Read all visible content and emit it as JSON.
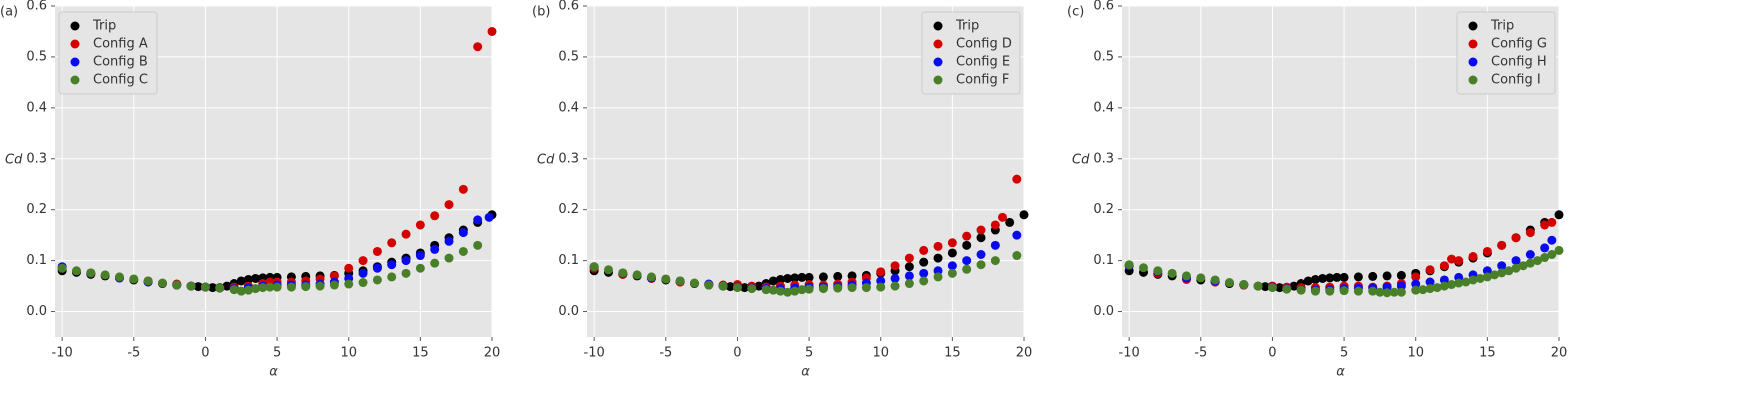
{
  "chart_data": [
    {
      "type": "scatter",
      "label": "(a)",
      "xlabel": "α",
      "ylabel": "Cd",
      "xlim": [
        -10.5,
        20
      ],
      "ylim": [
        -0.05,
        0.6
      ],
      "xticks": [
        -10,
        -5,
        0,
        5,
        10,
        15,
        20
      ],
      "yticks": [
        {
          "value": 0,
          "label": "0.0"
        },
        0.1,
        0.2,
        0.3,
        0.4,
        0.5,
        0.6
      ],
      "grid": true,
      "legend": "upper left",
      "series": [
        {
          "name": "Trip",
          "color": "#000000",
          "x": [
            -10,
            -9,
            -8,
            -7,
            -6,
            -5,
            -4,
            -3,
            -2,
            -1,
            -0.5,
            0,
            0.5,
            1,
            1.5,
            2,
            2.5,
            3,
            3.5,
            4,
            4.5,
            5,
            6,
            7,
            8,
            9,
            10,
            11,
            12,
            13,
            14,
            15,
            16,
            17,
            18,
            19,
            20
          ],
          "values": [
            0.08,
            0.077,
            0.073,
            0.07,
            0.066,
            0.062,
            0.058,
            0.055,
            0.052,
            0.05,
            0.049,
            0.048,
            0.047,
            0.047,
            0.05,
            0.055,
            0.06,
            0.063,
            0.065,
            0.066,
            0.067,
            0.067,
            0.068,
            0.069,
            0.07,
            0.071,
            0.075,
            0.08,
            0.088,
            0.097,
            0.105,
            0.115,
            0.13,
            0.145,
            0.16,
            0.175,
            0.19
          ]
        },
        {
          "name": "Config A",
          "color": "#d40000",
          "x": [
            -10,
            -8,
            -6,
            -4,
            -2,
            -1,
            0,
            1,
            2,
            3,
            4,
            4.5,
            5,
            6,
            7,
            8,
            9,
            10,
            11,
            12,
            13,
            14,
            15,
            16,
            17,
            18,
            19,
            20
          ],
          "values": [
            0.085,
            0.075,
            0.066,
            0.06,
            0.054,
            0.05,
            0.048,
            0.047,
            0.048,
            0.05,
            0.055,
            0.058,
            0.058,
            0.058,
            0.06,
            0.064,
            0.07,
            0.085,
            0.1,
            0.118,
            0.135,
            0.152,
            0.17,
            0.188,
            0.21,
            0.24,
            0.52,
            0.55
          ]
        },
        {
          "name": "Config B",
          "color": "#0a0af0",
          "x": [
            -10,
            -8,
            -6,
            -4,
            -2,
            -1,
            0,
            1,
            2,
            3,
            4,
            5,
            6,
            7,
            8,
            9,
            10,
            11,
            12,
            13,
            14,
            15,
            16,
            17,
            18,
            19,
            19.8
          ],
          "values": [
            0.088,
            0.075,
            0.066,
            0.058,
            0.052,
            0.05,
            0.048,
            0.046,
            0.045,
            0.047,
            0.05,
            0.052,
            0.052,
            0.052,
            0.054,
            0.058,
            0.065,
            0.075,
            0.085,
            0.092,
            0.1,
            0.11,
            0.122,
            0.138,
            0.155,
            0.18,
            0.185
          ]
        },
        {
          "name": "Config C",
          "color": "#4a7f2a",
          "x": [
            -10,
            -9,
            -8,
            -7,
            -6,
            -5,
            -4,
            -3,
            -2,
            -1,
            0,
            1,
            2,
            2.5,
            3,
            3.5,
            4,
            4.5,
            5,
            6,
            7,
            8,
            9,
            10,
            11,
            12,
            13,
            14,
            15,
            16,
            17,
            18,
            19
          ],
          "values": [
            0.085,
            0.08,
            0.076,
            0.072,
            0.068,
            0.064,
            0.06,
            0.056,
            0.052,
            0.05,
            0.048,
            0.046,
            0.043,
            0.04,
            0.042,
            0.045,
            0.047,
            0.048,
            0.048,
            0.048,
            0.049,
            0.05,
            0.052,
            0.054,
            0.057,
            0.062,
            0.068,
            0.075,
            0.085,
            0.095,
            0.105,
            0.118,
            0.13
          ]
        }
      ]
    },
    {
      "type": "scatter",
      "label": "(b)",
      "xlabel": "α",
      "ylabel": "Cd",
      "xlim": [
        -10.5,
        20
      ],
      "ylim": [
        -0.05,
        0.6
      ],
      "xticks": [
        -10,
        -5,
        0,
        5,
        10,
        15,
        20
      ],
      "yticks": [
        {
          "value": 0,
          "label": "0.0"
        },
        0.1,
        0.2,
        0.3,
        0.4,
        0.5,
        0.6
      ],
      "grid": true,
      "legend": "upper right",
      "series": [
        {
          "name": "Trip",
          "color": "#000000",
          "x": [
            -10,
            -9,
            -8,
            -7,
            -6,
            -5,
            -4,
            -3,
            -2,
            -1,
            -0.5,
            0,
            0.5,
            1,
            1.5,
            2,
            2.5,
            3,
            3.5,
            4,
            4.5,
            5,
            6,
            7,
            8,
            9,
            10,
            11,
            12,
            13,
            14,
            15,
            16,
            17,
            18,
            19,
            20
          ],
          "values": [
            0.08,
            0.077,
            0.073,
            0.07,
            0.066,
            0.062,
            0.058,
            0.055,
            0.052,
            0.05,
            0.049,
            0.048,
            0.047,
            0.047,
            0.05,
            0.055,
            0.06,
            0.063,
            0.065,
            0.066,
            0.067,
            0.067,
            0.068,
            0.069,
            0.07,
            0.071,
            0.075,
            0.08,
            0.088,
            0.097,
            0.105,
            0.115,
            0.13,
            0.145,
            0.16,
            0.175,
            0.19
          ]
        },
        {
          "name": "Config D",
          "color": "#d40000",
          "x": [
            -10,
            -8,
            -6,
            -4,
            -2,
            -1,
            0,
            1,
            2,
            3,
            4,
            5,
            6,
            7,
            8,
            9,
            10,
            11,
            12,
            13,
            14,
            15,
            16,
            17,
            18,
            18.5,
            19.5
          ],
          "values": [
            0.085,
            0.073,
            0.065,
            0.058,
            0.053,
            0.052,
            0.053,
            0.05,
            0.048,
            0.05,
            0.052,
            0.053,
            0.052,
            0.054,
            0.058,
            0.066,
            0.078,
            0.09,
            0.105,
            0.12,
            0.128,
            0.135,
            0.148,
            0.16,
            0.17,
            0.185,
            0.26
          ]
        },
        {
          "name": "Config E",
          "color": "#0a0af0",
          "x": [
            -10,
            -8,
            -6,
            -4,
            -2,
            -1,
            0,
            1,
            2,
            3,
            4,
            5,
            6,
            7,
            8,
            9,
            10,
            11,
            12,
            13,
            14,
            15,
            16,
            17,
            18,
            19.5
          ],
          "values": [
            0.088,
            0.075,
            0.066,
            0.06,
            0.054,
            0.05,
            0.048,
            0.046,
            0.045,
            0.045,
            0.046,
            0.048,
            0.048,
            0.049,
            0.052,
            0.056,
            0.06,
            0.065,
            0.07,
            0.075,
            0.08,
            0.09,
            0.1,
            0.112,
            0.13,
            0.15
          ]
        },
        {
          "name": "Config F",
          "color": "#4a7f2a",
          "x": [
            -10,
            -9,
            -8,
            -7,
            -6,
            -5,
            -4,
            -3,
            -2,
            -1,
            0,
            1,
            2,
            2.5,
            3,
            3.5,
            4,
            4.5,
            5,
            6,
            7,
            8,
            9,
            10,
            11,
            12,
            13,
            14,
            15,
            16,
            17,
            18,
            19.5
          ],
          "values": [
            0.088,
            0.082,
            0.076,
            0.072,
            0.068,
            0.064,
            0.06,
            0.056,
            0.052,
            0.05,
            0.047,
            0.045,
            0.043,
            0.042,
            0.04,
            0.038,
            0.04,
            0.043,
            0.044,
            0.045,
            0.046,
            0.047,
            0.047,
            0.048,
            0.05,
            0.055,
            0.06,
            0.068,
            0.075,
            0.083,
            0.092,
            0.1,
            0.11
          ]
        }
      ]
    },
    {
      "type": "scatter",
      "label": "(c)",
      "xlabel": "α",
      "ylabel": "Cd",
      "xlim": [
        -10.5,
        20
      ],
      "ylim": [
        -0.05,
        0.6
      ],
      "xticks": [
        -10,
        -5,
        0,
        5,
        10,
        15,
        20
      ],
      "yticks": [
        {
          "value": 0,
          "label": "0.0"
        },
        0.1,
        0.2,
        0.3,
        0.4,
        0.5,
        0.6
      ],
      "grid": true,
      "legend": "upper right",
      "series": [
        {
          "name": "Trip",
          "color": "#000000",
          "x": [
            -10,
            -9,
            -8,
            -7,
            -6,
            -5,
            -4,
            -3,
            -2,
            -1,
            -0.5,
            0,
            0.5,
            1,
            1.5,
            2,
            2.5,
            3,
            3.5,
            4,
            4.5,
            5,
            6,
            7,
            8,
            9,
            10,
            11,
            12,
            13,
            14,
            15,
            16,
            17,
            18,
            19,
            20
          ],
          "values": [
            0.08,
            0.077,
            0.073,
            0.07,
            0.066,
            0.062,
            0.058,
            0.055,
            0.052,
            0.05,
            0.049,
            0.048,
            0.047,
            0.047,
            0.05,
            0.055,
            0.06,
            0.063,
            0.065,
            0.066,
            0.067,
            0.067,
            0.068,
            0.069,
            0.07,
            0.071,
            0.075,
            0.08,
            0.088,
            0.097,
            0.105,
            0.115,
            0.13,
            0.145,
            0.16,
            0.175,
            0.19
          ]
        },
        {
          "name": "Config G",
          "color": "#d40000",
          "x": [
            -10,
            -8,
            -6,
            -4,
            -2,
            0,
            1,
            2,
            3,
            4,
            5,
            6,
            7,
            8,
            9,
            10,
            11,
            12,
            12.5,
            13,
            14,
            15,
            16,
            17,
            18,
            19,
            19.5
          ],
          "values": [
            0.09,
            0.075,
            0.063,
            0.058,
            0.052,
            0.05,
            0.048,
            0.047,
            0.047,
            0.048,
            0.05,
            0.05,
            0.048,
            0.05,
            0.055,
            0.068,
            0.082,
            0.09,
            0.103,
            0.1,
            0.108,
            0.118,
            0.13,
            0.145,
            0.155,
            0.17,
            0.175
          ]
        },
        {
          "name": "Config H",
          "color": "#0a0af0",
          "x": [
            -10,
            -8,
            -6,
            -4,
            -2,
            0,
            1,
            2,
            3,
            4,
            5,
            6,
            7,
            8,
            9,
            10,
            11,
            12,
            13,
            14,
            15,
            16,
            17,
            18,
            19,
            19.5
          ],
          "values": [
            0.09,
            0.078,
            0.066,
            0.06,
            0.053,
            0.048,
            0.045,
            0.043,
            0.042,
            0.043,
            0.045,
            0.046,
            0.046,
            0.048,
            0.05,
            0.054,
            0.058,
            0.062,
            0.067,
            0.072,
            0.08,
            0.09,
            0.1,
            0.112,
            0.125,
            0.14
          ]
        },
        {
          "name": "Config I",
          "color": "#4a7f2a",
          "x": [
            -10,
            -9,
            -8,
            -7,
            -6,
            -5,
            -4,
            -3,
            -2,
            -1,
            0,
            1,
            2,
            3,
            4,
            5,
            6,
            7,
            7.5,
            8,
            8.5,
            9,
            10,
            10.5,
            11,
            11.5,
            12,
            12.5,
            13,
            13.5,
            14,
            14.5,
            15,
            15.5,
            16,
            16.5,
            17,
            17.5,
            18,
            18.5,
            19,
            19.5,
            20
          ],
          "values": [
            0.092,
            0.086,
            0.08,
            0.075,
            0.07,
            0.066,
            0.062,
            0.057,
            0.053,
            0.05,
            0.047,
            0.044,
            0.042,
            0.04,
            0.04,
            0.041,
            0.04,
            0.04,
            0.038,
            0.037,
            0.038,
            0.038,
            0.042,
            0.043,
            0.045,
            0.047,
            0.05,
            0.053,
            0.056,
            0.058,
            0.062,
            0.065,
            0.068,
            0.072,
            0.076,
            0.08,
            0.085,
            0.09,
            0.095,
            0.1,
            0.106,
            0.112,
            0.12
          ]
        }
      ]
    }
  ]
}
